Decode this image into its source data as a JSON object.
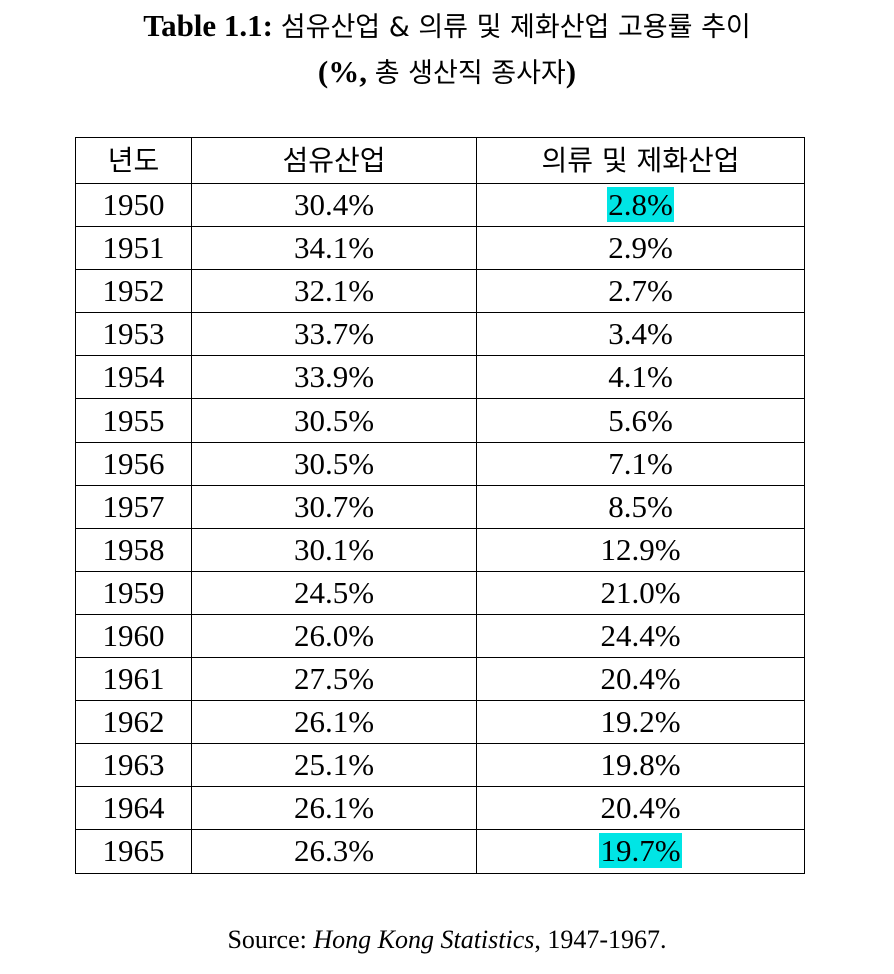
{
  "title": {
    "label": "Table 1.1:",
    "text": "섬유산업 & 의류 및 제화산업 고용률 추이",
    "subtitle_open": "(%,",
    "subtitle_text": "총 생산직 종사자",
    "subtitle_close": ")"
  },
  "table": {
    "headers": [
      "년도",
      "섬유산업",
      "의류 및 제화산업"
    ],
    "rows": [
      {
        "year": "1950",
        "textile": "30.4%",
        "apparel": "2.8%",
        "highlight": true
      },
      {
        "year": "1951",
        "textile": "34.1%",
        "apparel": "2.9%",
        "highlight": false
      },
      {
        "year": "1952",
        "textile": "32.1%",
        "apparel": "2.7%",
        "highlight": false
      },
      {
        "year": "1953",
        "textile": "33.7%",
        "apparel": "3.4%",
        "highlight": false
      },
      {
        "year": "1954",
        "textile": "33.9%",
        "apparel": "4.1%",
        "highlight": false
      },
      {
        "year": "1955",
        "textile": "30.5%",
        "apparel": "5.6%",
        "highlight": false
      },
      {
        "year": "1956",
        "textile": "30.5%",
        "apparel": "7.1%",
        "highlight": false
      },
      {
        "year": "1957",
        "textile": "30.7%",
        "apparel": "8.5%",
        "highlight": false
      },
      {
        "year": "1958",
        "textile": "30.1%",
        "apparel": "12.9%",
        "highlight": false
      },
      {
        "year": "1959",
        "textile": "24.5%",
        "apparel": "21.0%",
        "highlight": false
      },
      {
        "year": "1960",
        "textile": "26.0%",
        "apparel": "24.4%",
        "highlight": false
      },
      {
        "year": "1961",
        "textile": "27.5%",
        "apparel": "20.4%",
        "highlight": false
      },
      {
        "year": "1962",
        "textile": "26.1%",
        "apparel": "19.2%",
        "highlight": false
      },
      {
        "year": "1963",
        "textile": "25.1%",
        "apparel": "19.8%",
        "highlight": false
      },
      {
        "year": "1964",
        "textile": "26.1%",
        "apparel": "20.4%",
        "highlight": false
      },
      {
        "year": "1965",
        "textile": "26.3%",
        "apparel": "19.7%",
        "highlight": true
      }
    ],
    "highlight_color": "#00e5e5"
  },
  "source": {
    "prefix": "Source: ",
    "publication": "Hong Kong Statistics",
    "suffix": ", 1947-1967."
  }
}
